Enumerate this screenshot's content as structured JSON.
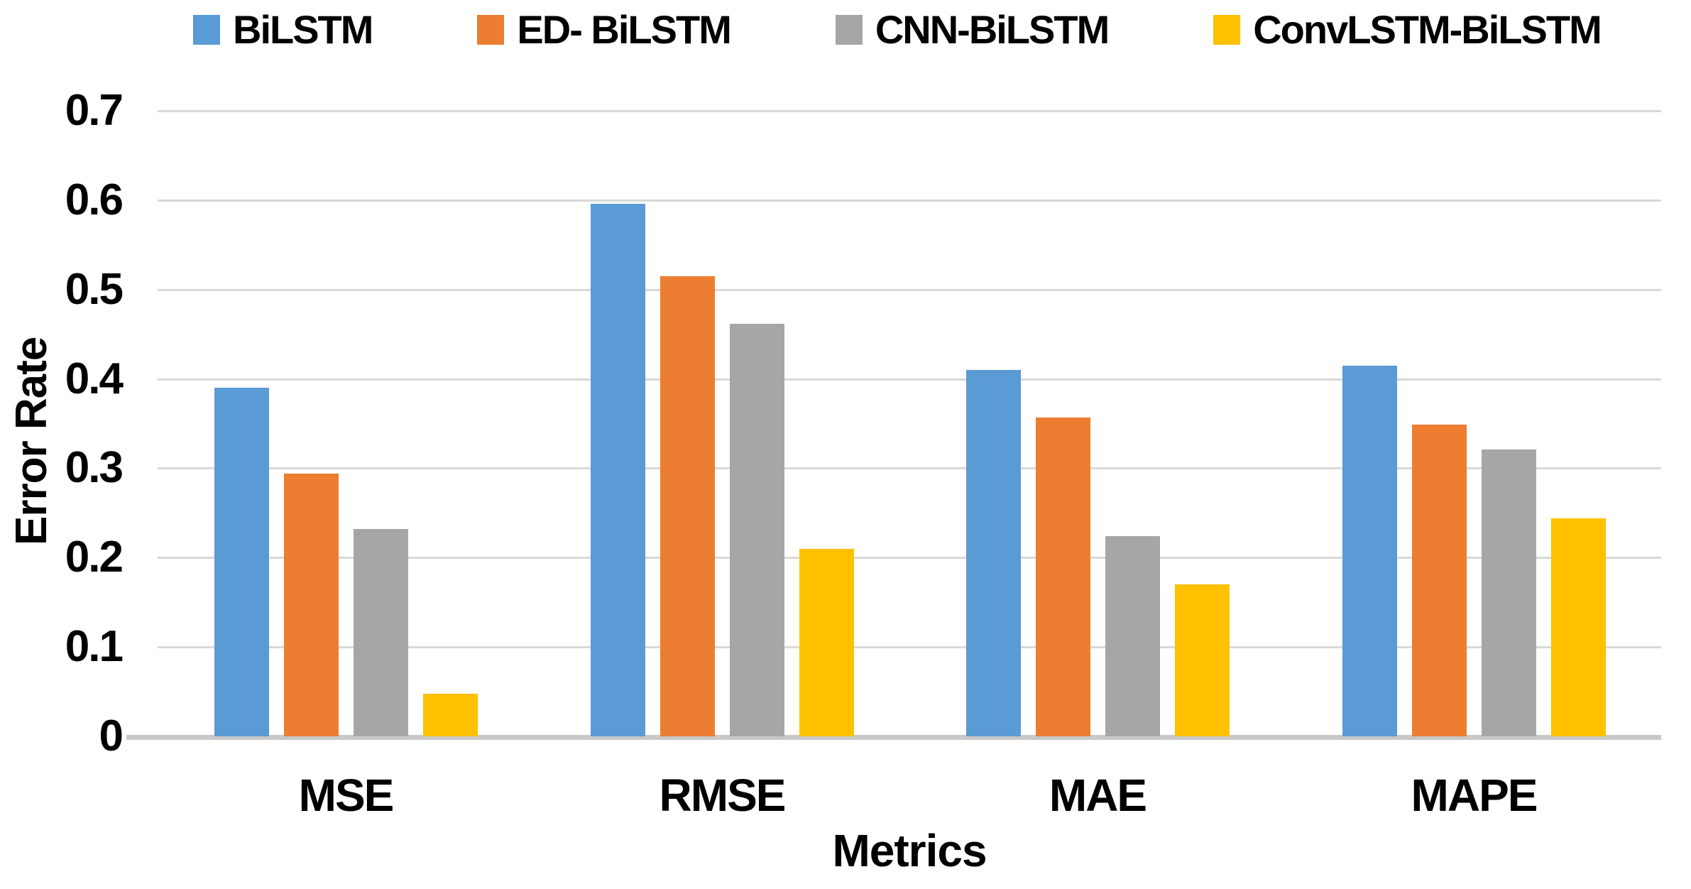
{
  "chart_data": {
    "type": "bar",
    "title": "",
    "xlabel": "Metrics",
    "ylabel": "Error Rate",
    "categories": [
      "MSE",
      "RMSE",
      "MAE",
      "MAPE"
    ],
    "series": [
      {
        "name": "BiLSTM",
        "color": "#5B9BD5",
        "values": [
          0.39,
          0.596,
          0.41,
          0.415
        ]
      },
      {
        "name": "ED- BiLSTM",
        "color": "#ED7D31",
        "values": [
          0.294,
          0.515,
          0.357,
          0.349
        ]
      },
      {
        "name": "CNN-BiLSTM",
        "color": "#A6A6A6",
        "values": [
          0.232,
          0.462,
          0.224,
          0.321
        ]
      },
      {
        "name": "ConvLSTM-BiLSTM",
        "color": "#FFC000",
        "values": [
          0.048,
          0.21,
          0.17,
          0.244
        ]
      }
    ],
    "y_ticks": [
      "0.7",
      "0.6",
      "0.5",
      "0.4",
      "0.3",
      "0.2",
      "0.1",
      "0"
    ],
    "ylim": [
      0,
      0.7
    ],
    "grid": true,
    "legend_position": "top"
  },
  "colors": {
    "gridline": "#D9D9D9",
    "axis_line": "#C8C8C8",
    "text": "#000000",
    "background": "#FFFFFF"
  }
}
